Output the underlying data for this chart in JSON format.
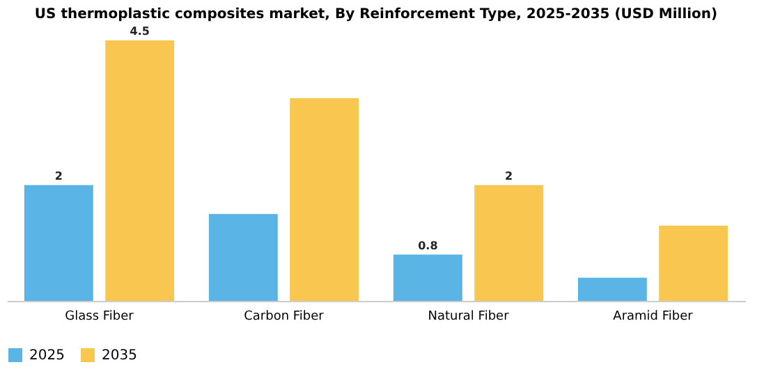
{
  "chart_data": {
    "type": "bar",
    "title": "US thermoplastic composites market, By Reinforcement Type, 2025-2035 (USD Million)",
    "categories": [
      "Glass Fiber",
      "Carbon Fiber",
      "Natural Fiber",
      "Aramid Fiber"
    ],
    "series": [
      {
        "name": "2025",
        "color": "#5ab4e5",
        "values": [
          2,
          1.5,
          0.8,
          0.4
        ],
        "value_labels": [
          "2",
          null,
          "0.8",
          null
        ]
      },
      {
        "name": "2035",
        "color": "#f9c74f",
        "values": [
          4.5,
          3.5,
          2,
          1.3
        ],
        "value_labels": [
          "4.5",
          null,
          "2",
          null
        ]
      }
    ],
    "legend": "bottom",
    "grid": false
  }
}
